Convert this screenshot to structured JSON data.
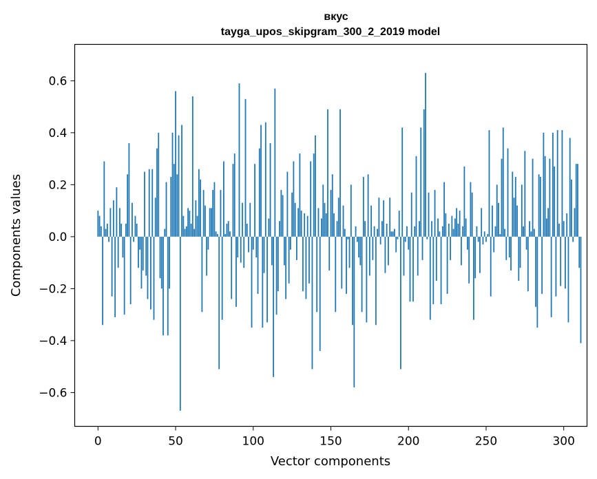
{
  "chart_data": {
    "type": "bar",
    "title": "вкус",
    "subtitle": "tayga_upos_skipgram_300_2_2019 model",
    "xlabel": "Vector components",
    "ylabel": "Components values",
    "xlim": [
      -15,
      315
    ],
    "ylim": [
      -0.73,
      0.74
    ],
    "x_ticks": [
      0,
      50,
      100,
      150,
      200,
      250,
      300
    ],
    "x_tick_labels": [
      "0",
      "50",
      "100",
      "150",
      "200",
      "250",
      "300"
    ],
    "y_ticks": [
      0.6,
      0.4,
      0.2,
      0.0,
      -0.2,
      -0.4,
      -0.6
    ],
    "y_tick_labels": [
      "0.6",
      "0.4",
      "0.2",
      "0.0",
      "−0.2",
      "−0.4",
      "−0.6"
    ],
    "grid": false,
    "bar_color": "#1f77b4",
    "values": [
      0.1,
      0.08,
      0.04,
      -0.34,
      0.29,
      0.03,
      0.05,
      -0.02,
      0.11,
      -0.23,
      0.14,
      -0.31,
      0.19,
      -0.12,
      0.11,
      0.05,
      -0.08,
      -0.3,
      0.05,
      0.24,
      0.36,
      -0.26,
      0.13,
      -0.02,
      0.08,
      0.05,
      -0.12,
      -0.05,
      -0.2,
      -0.13,
      0.25,
      -0.15,
      -0.24,
      0.26,
      -0.28,
      0.26,
      -0.32,
      0.15,
      0.34,
      0.4,
      -0.16,
      -0.2,
      -0.38,
      0.03,
      0.21,
      -0.38,
      -0.2,
      0.23,
      0.4,
      0.28,
      0.56,
      0.24,
      0.39,
      -0.67,
      0.43,
      0.08,
      0.03,
      0.04,
      0.11,
      0.1,
      0.05,
      0.54,
      0.03,
      0.14,
      0.08,
      0.26,
      0.22,
      -0.29,
      0.18,
      0.12,
      -0.15,
      -0.05,
      0.11,
      0.11,
      0.18,
      0.21,
      0.02,
      0.01,
      -0.51,
      0.18,
      -0.32,
      0.29,
      0.01,
      0.05,
      0.06,
      0.02,
      -0.24,
      0.28,
      0.32,
      -0.27,
      -0.08,
      0.59,
      -0.1,
      0.13,
      -0.12,
      0.53,
      0.05,
      -0.06,
      0.13,
      -0.35,
      -0.05,
      0.28,
      -0.08,
      -0.22,
      0.34,
      0.43,
      -0.35,
      -0.14,
      0.44,
      -0.33,
      0.07,
      0.36,
      -0.11,
      -0.54,
      0.57,
      -0.3,
      -0.21,
      0.06,
      0.18,
      0.16,
      -0.11,
      -0.24,
      0.25,
      -0.18,
      -0.05,
      0.17,
      0.29,
      0.13,
      -0.09,
      0.11,
      0.32,
      0.1,
      -0.21,
      0.09,
      -0.24,
      0.08,
      -0.18,
      0.29,
      -0.51,
      0.32,
      0.39,
      -0.29,
      0.11,
      -0.44,
      0.07,
      0.2,
      0.13,
      0.09,
      0.49,
      -0.13,
      0.18,
      0.24,
      0.09,
      -0.29,
      0.06,
      0.15,
      0.49,
      -0.2,
      0.12,
      0.03,
      -0.22,
      -0.01,
      -0.12,
      0.2,
      -0.34,
      -0.58,
      0.04,
      -0.02,
      -0.08,
      -0.11,
      -0.29,
      0.23,
      0.06,
      -0.33,
      0.24,
      -0.15,
      0.12,
      -0.09,
      0.04,
      -0.34,
      0.03,
      0.15,
      -0.03,
      0.06,
      0.14,
      -0.14,
      0.05,
      -0.11,
      0.15,
      0.02,
      0.02,
      0.03,
      -0.06,
      -0.01,
      0.1,
      -0.51,
      0.42,
      -0.15,
      -0.02,
      0.04,
      -0.05,
      -0.25,
      0.17,
      -0.25,
      0.04,
      0.31,
      -0.15,
      0.06,
      0.42,
      -0.09,
      0.49,
      0.63,
      -0.01,
      0.17,
      -0.32,
      0.06,
      -0.26,
      0.18,
      -0.17,
      0.07,
      0.02,
      -0.26,
      0.04,
      0.21,
      0.09,
      -0.22,
      0.05,
      -0.09,
      0.08,
      0.03,
      0.07,
      0.11,
      0.05,
      0.1,
      -0.11,
      0.04,
      0.27,
      0.07,
      -0.05,
      -0.18,
      0.21,
      0.17,
      -0.32,
      -0.16,
      0.04,
      -0.02,
      -0.14,
      0.11,
      -0.03,
      0.02,
      -0.02,
      0.01,
      0.41,
      -0.23,
      0.12,
      -0.06,
      0.04,
      0.2,
      0.13,
      0.01,
      0.3,
      0.42,
      0.03,
      -0.09,
      0.34,
      -0.08,
      -0.13,
      0.25,
      0.15,
      0.23,
      0.12,
      -0.17,
      -0.12,
      0.2,
      0.04,
      0.33,
      -0.05,
      -0.21,
      0.06,
      0.02,
      0.3,
      0.03,
      -0.27,
      -0.35,
      0.24,
      0.23,
      -0.22,
      0.4,
      0.31,
      0.07,
      0.11,
      0.3,
      -0.31,
      0.4,
      0.27,
      -0.23,
      0.41,
      0.05,
      -0.19,
      0.41,
      0.06,
      -0.2,
      0.09,
      -0.33,
      0.38,
      0.22,
      -0.02,
      0.11,
      0.28,
      0.28,
      -0.12,
      -0.41
    ]
  }
}
